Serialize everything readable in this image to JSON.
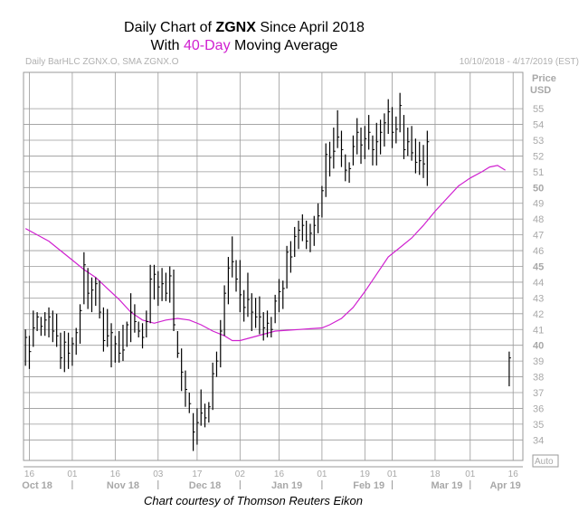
{
  "header": {
    "title_prefix": "Daily Chart of ",
    "ticker": "ZGNX",
    "title_suffix": " Since April 2018",
    "line2_prefix": "With ",
    "ma_label": "40-Day",
    "line2_suffix": " Moving Average",
    "subtitle": "Daily BarHLC ZGNX.O, SMA ZGNX.O",
    "date_range": "10/10/2018 - 4/17/2019 (EST)",
    "credit": "Chart courtesy of Thomson Reuters Eikon"
  },
  "colors": {
    "bars": "#000000",
    "moving_average": "#d020d0",
    "grid": "#9a9a9a",
    "axis_text": "#a8a8a8"
  },
  "chart_data": {
    "type": "bar",
    "subtype": "daily HLC bars with 40-day moving average",
    "axis_unit_labels": [
      "Price",
      "USD"
    ],
    "auto_label": "Auto",
    "ylim": [
      32.7,
      57.3
    ],
    "y_ticks": [
      34,
      35,
      36,
      37,
      38,
      39,
      40,
      41,
      42,
      43,
      44,
      45,
      46,
      47,
      48,
      49,
      50,
      51,
      52,
      53,
      54,
      55
    ],
    "y_bold_ticks": [
      40,
      45,
      50
    ],
    "x_day_ticks": [
      {
        "label": "16",
        "bar": 1
      },
      {
        "label": "01",
        "bar": 12
      },
      {
        "label": "16",
        "bar": 23
      },
      {
        "label": "03",
        "bar": 34
      },
      {
        "label": "17",
        "bar": 44
      },
      {
        "label": "02",
        "bar": 55
      },
      {
        "label": "16",
        "bar": 65
      },
      {
        "label": "01",
        "bar": 76
      },
      {
        "label": "19",
        "bar": 87
      },
      {
        "label": "01",
        "bar": 94
      },
      {
        "label": "18",
        "bar": 105
      },
      {
        "label": "01",
        "bar": 114
      },
      {
        "label": "16",
        "bar": 125
      }
    ],
    "x_month_labels": [
      {
        "label": "Oct 18",
        "bar": 3
      },
      {
        "label": "Nov 18",
        "bar": 25
      },
      {
        "label": "Dec 18",
        "bar": 46
      },
      {
        "label": "Jan 19",
        "bar": 67
      },
      {
        "label": "Feb 19",
        "bar": 88
      },
      {
        "label": "Mar 19",
        "bar": 108
      },
      {
        "label": "Apr 19",
        "bar": 123
      }
    ],
    "x_separators": [
      12,
      34,
      55,
      76,
      94,
      114
    ],
    "n_slots": 128,
    "bars": [
      [
        41,
        38.7,
        40.5
      ],
      [
        40.6,
        38.5,
        39.6
      ],
      [
        42.2,
        39.9,
        41.1
      ],
      [
        42.1,
        40.9,
        41.8
      ],
      [
        41.8,
        40.6,
        41.2
      ],
      [
        42.1,
        40.6,
        41.6
      ],
      [
        42.4,
        40.5,
        41.8
      ],
      [
        42.2,
        40.2,
        40.9
      ],
      [
        42,
        39.9,
        40.6
      ],
      [
        40.8,
        38.5,
        39.2
      ],
      [
        40.9,
        38.3,
        40.2
      ],
      [
        40.8,
        38.5,
        39.5
      ],
      [
        40.5,
        38.7,
        40.1
      ],
      [
        41.1,
        39.4,
        40.8
      ],
      [
        42.6,
        40.1,
        42.2
      ],
      [
        45.9,
        42.6,
        45.1
      ],
      [
        44.9,
        42.3,
        43.3
      ],
      [
        44.3,
        42.1,
        43.5
      ],
      [
        44.3,
        42.5,
        43.9
      ],
      [
        44.1,
        41.7,
        42.1
      ],
      [
        42.4,
        39.6,
        40.3
      ],
      [
        42.3,
        39.9,
        40.6
      ],
      [
        41.4,
        38.6,
        40.8
      ],
      [
        40.6,
        38.9,
        40.1
      ],
      [
        40.9,
        38.9,
        39.5
      ],
      [
        41.3,
        39,
        39.7
      ],
      [
        41.5,
        39.9,
        41.3
      ],
      [
        43.3,
        40.2,
        42.1
      ],
      [
        42.6,
        40.8,
        41.5
      ],
      [
        41.5,
        40.5,
        40.9
      ],
      [
        41.4,
        39.8,
        40.5
      ],
      [
        42.2,
        40.5,
        41.5
      ],
      [
        45.1,
        41.4,
        44.2
      ],
      [
        45.1,
        42.9,
        44.5
      ],
      [
        44.7,
        42.5,
        43.7
      ],
      [
        44.9,
        42.8,
        43.9
      ],
      [
        44.6,
        42.8,
        43.3
      ],
      [
        45,
        42.7,
        44.4
      ],
      [
        44.8,
        40.9,
        41.3
      ],
      [
        40.9,
        39.2,
        39.5
      ],
      [
        39.8,
        37.1,
        38.3
      ],
      [
        38.4,
        36.1,
        37.2
      ],
      [
        37,
        35.7,
        36.3
      ],
      [
        35.7,
        33.3,
        34.5
      ],
      [
        36,
        33.7,
        35.1
      ],
      [
        37.2,
        34.9,
        35.7
      ],
      [
        36.3,
        34.8,
        35.4
      ],
      [
        36.4,
        35.1,
        36.1
      ],
      [
        38.9,
        35.9,
        38.2
      ],
      [
        39.6,
        38,
        39
      ],
      [
        41.6,
        38.6,
        40.9
      ],
      [
        43.8,
        40.6,
        43.3
      ],
      [
        45.6,
        42.6,
        44.9
      ],
      [
        46.9,
        44.3,
        45.3
      ],
      [
        45.4,
        43.4,
        44.2
      ],
      [
        45.4,
        42.1,
        43.2
      ],
      [
        43.5,
        41.5,
        42.4
      ],
      [
        44.6,
        41.8,
        42.9
      ],
      [
        43.3,
        40.9,
        42.1
      ],
      [
        43,
        41.1,
        41.8
      ],
      [
        43.1,
        40.7,
        41.8
      ],
      [
        42.1,
        40.3,
        41.1
      ],
      [
        42.2,
        40.5,
        41.4
      ],
      [
        41.8,
        40.5,
        41
      ],
      [
        43.2,
        41.4,
        42.8
      ],
      [
        44.2,
        42.1,
        43.4
      ],
      [
        44.1,
        42.3,
        43.6
      ],
      [
        46.3,
        43.6,
        45.9
      ],
      [
        46.6,
        44.6,
        45.6
      ],
      [
        47.5,
        45.6,
        46.9
      ],
      [
        47.9,
        46.1,
        47.3
      ],
      [
        48.3,
        46.6,
        47.6
      ],
      [
        47.9,
        46.1,
        46.6
      ],
      [
        47.7,
        45.9,
        47.1
      ],
      [
        48.2,
        46.3,
        47.6
      ],
      [
        49,
        47.1,
        48.2
      ],
      [
        50.1,
        48.1,
        49.8
      ],
      [
        52.8,
        49.4,
        52.1
      ],
      [
        52.9,
        50.7,
        51.9
      ],
      [
        53.8,
        51.2,
        52.3
      ],
      [
        54.9,
        52.5,
        53.2
      ],
      [
        53.6,
        51.3,
        52.4
      ],
      [
        52.1,
        50.4,
        51.1
      ],
      [
        51.6,
        50.3,
        51.2
      ],
      [
        53.3,
        51.4,
        52.6
      ],
      [
        54.4,
        52.1,
        53.5
      ],
      [
        53.8,
        51.5,
        52.7
      ],
      [
        53.9,
        51.8,
        53.1
      ],
      [
        54.6,
        52.4,
        53.5
      ],
      [
        53.3,
        51.4,
        52.4
      ],
      [
        54.1,
        51.4,
        52.9
      ],
      [
        54.3,
        52.1,
        53.5
      ],
      [
        54.7,
        52.6,
        54.1
      ],
      [
        55.6,
        53.4,
        54.8
      ],
      [
        55.1,
        52.5,
        53.5
      ],
      [
        54.5,
        52.8,
        53.7
      ],
      [
        56,
        53.5,
        55.2
      ],
      [
        54.6,
        51.8,
        52.4
      ],
      [
        53.8,
        52,
        52.9
      ],
      [
        53.9,
        51.7,
        52.2
      ],
      [
        53.1,
        50.9,
        51.6
      ],
      [
        52.9,
        50.8,
        51.7
      ],
      [
        52.7,
        50.6,
        51.5
      ],
      [
        53.6,
        50.1,
        52.9
      ]
    ],
    "late_bar": [
      39.6,
      37.4,
      39.2
    ],
    "ma40": [
      [
        0,
        47.4
      ],
      [
        3,
        47
      ],
      [
        6,
        46.6
      ],
      [
        9,
        46
      ],
      [
        12,
        45.4
      ],
      [
        15,
        44.8
      ],
      [
        18,
        44.3
      ],
      [
        21,
        43.6
      ],
      [
        24,
        42.9
      ],
      [
        27,
        42.1
      ],
      [
        30,
        41.6
      ],
      [
        33,
        41.4
      ],
      [
        36,
        41.6
      ],
      [
        39,
        41.7
      ],
      [
        42,
        41.6
      ],
      [
        45,
        41.3
      ],
      [
        48,
        40.9
      ],
      [
        51,
        40.6
      ],
      [
        53,
        40.3
      ],
      [
        55,
        40.3
      ],
      [
        58,
        40.5
      ],
      [
        61,
        40.7
      ],
      [
        64,
        40.9
      ],
      [
        67,
        40.95
      ],
      [
        70,
        41
      ],
      [
        73,
        41.05
      ],
      [
        76,
        41.1
      ],
      [
        78,
        41.3
      ],
      [
        81,
        41.7
      ],
      [
        84,
        42.4
      ],
      [
        87,
        43.4
      ],
      [
        90,
        44.5
      ],
      [
        93,
        45.6
      ],
      [
        96,
        46.2
      ],
      [
        99,
        46.8
      ],
      [
        102,
        47.6
      ],
      [
        105,
        48.5
      ],
      [
        108,
        49.3
      ],
      [
        111,
        50.1
      ],
      [
        114,
        50.6
      ],
      [
        117,
        51
      ],
      [
        119,
        51.3
      ],
      [
        121,
        51.4
      ],
      [
        123,
        51.1
      ]
    ]
  }
}
